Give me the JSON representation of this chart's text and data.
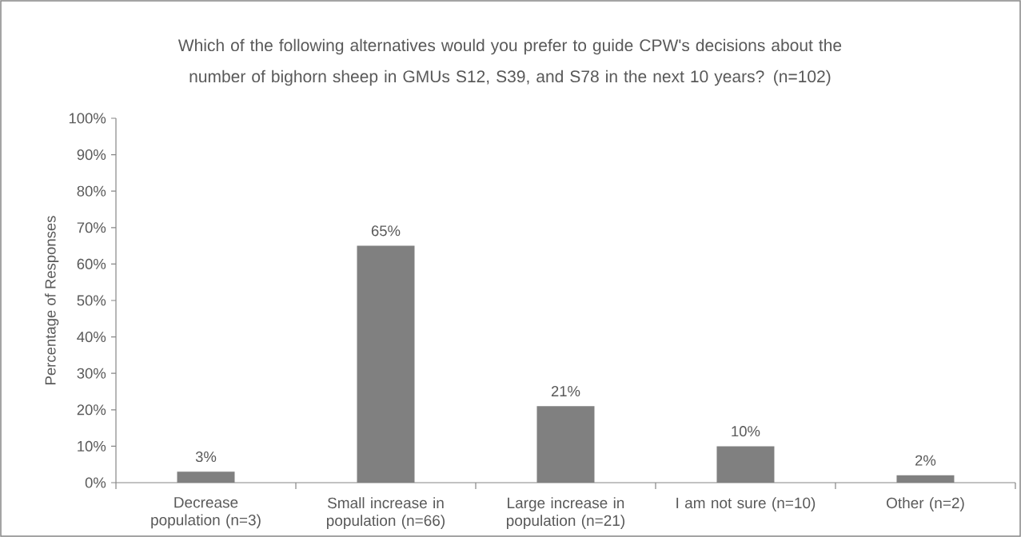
{
  "chart_data": {
    "type": "bar",
    "title": "Which of the following alternatives would you prefer to guide CPW's decisions about the number of bighorn sheep in GMUs S12, S39, and S78 in the next 10 years? (n=102)",
    "ylabel": "Percentage of Responses",
    "categories": [
      "Decrease population (n=3)",
      "Small increase in population (n=66)",
      "Large increase in population (n=21)",
      "I am not sure (n=10)",
      "Other (n=2)"
    ],
    "values": [
      3,
      65,
      21,
      10,
      2
    ],
    "value_labels": [
      "3%",
      "65%",
      "21%",
      "10%",
      "2%"
    ],
    "color": "#808080",
    "ylim": [
      0,
      100
    ],
    "yticks": [
      {
        "value": 0,
        "label": "0%"
      },
      {
        "value": 10,
        "label": "10%"
      },
      {
        "value": 20,
        "label": "20%"
      },
      {
        "value": 30,
        "label": "30%"
      },
      {
        "value": 40,
        "label": "40%"
      },
      {
        "value": 50,
        "label": "50%"
      },
      {
        "value": 60,
        "label": "60%"
      },
      {
        "value": 70,
        "label": "70%"
      },
      {
        "value": 80,
        "label": "80%"
      },
      {
        "value": 90,
        "label": "90%"
      },
      {
        "value": 100,
        "label": "100%"
      }
    ],
    "grid": false
  }
}
